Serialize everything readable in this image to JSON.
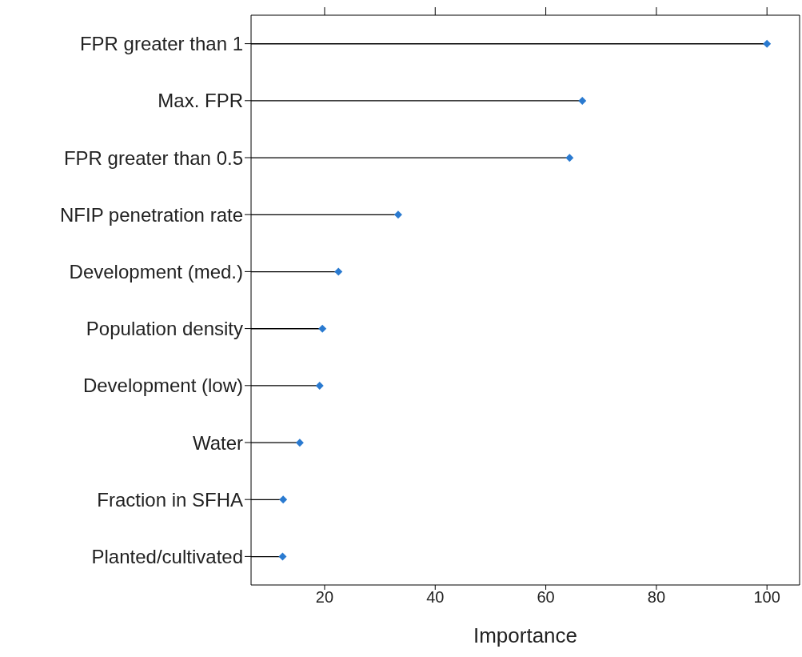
{
  "chart_data": {
    "type": "lollipop",
    "orientation": "horizontal",
    "xlabel": "Importance",
    "categories": [
      "FPR greater than 1",
      "Max. FPR",
      "FPR greater than 0.5",
      "NFIP penetration rate",
      "Development (med.)",
      "Population density",
      "Development (low)",
      "Water",
      "Fraction in SFHA",
      "Planted/cultivated"
    ],
    "values": [
      100,
      66.6,
      64.3,
      33.3,
      22.5,
      19.6,
      19.1,
      15.5,
      12.5,
      12.4
    ],
    "color": "#2a7ad0",
    "marker": "diamond",
    "xlim": [
      6.7,
      105.9
    ],
    "xticks": [
      20,
      40,
      60,
      80,
      100
    ],
    "grid": false,
    "legend": false
  }
}
